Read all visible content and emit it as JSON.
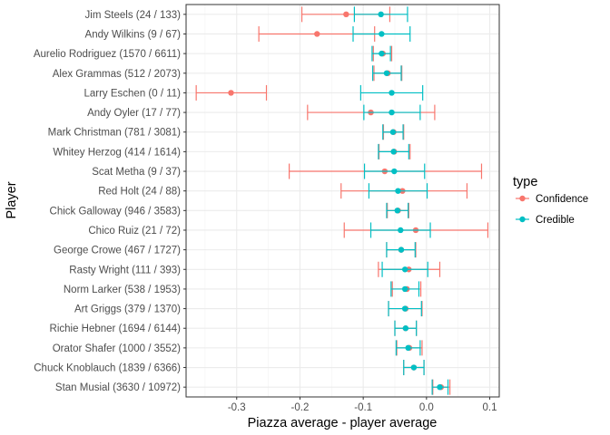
{
  "chart_data": {
    "type": "errorbar",
    "xlabel": "Piazza average - player average",
    "ylabel": "Player",
    "xlim": [
      -0.38,
      0.115
    ],
    "xticks": [
      -0.3,
      -0.2,
      -0.1,
      0.0,
      0.1
    ],
    "xtick_labels": [
      "-0.3",
      "-0.2",
      "-0.1",
      "0.0",
      "0.1"
    ],
    "grid": true,
    "legend": {
      "title": "type",
      "position": "right",
      "entries": [
        {
          "label": "Confidence",
          "color": "#F8766D"
        },
        {
          "label": "Credible",
          "color": "#00BFC4"
        }
      ]
    },
    "players": [
      "Jim Steels (24 / 133)",
      "Andy Wilkins (9 / 67)",
      "Aurelio Rodriguez (1570 / 6611)",
      "Alex Grammas (512 / 2073)",
      "Larry Eschen (0 / 11)",
      "Andy Oyler (17 / 77)",
      "Mark Christman (781 / 3081)",
      "Whitey Herzog (414 / 1614)",
      "Scat Metha (9 / 37)",
      "Red Holt (24 / 88)",
      "Chick Galloway (946 / 3583)",
      "Chico Ruiz (21 / 72)",
      "George Crowe (467 / 1727)",
      "Rasty Wright (111 / 393)",
      "Norm Larker (538 / 1953)",
      "Art Griggs (379 / 1370)",
      "Richie Hebner (1694 / 6144)",
      "Orator Shafer (1000 / 3552)",
      "Chuck Knoblauch (1839 / 6366)",
      "Stan Musial (3630 / 10972)"
    ],
    "series": [
      {
        "name": "Confidence",
        "color": "#F8766D",
        "estimate": [
          -0.127,
          -0.173,
          -0.069,
          -0.061,
          -0.309,
          -0.088,
          -0.052,
          -0.051,
          -0.066,
          -0.038,
          -0.045,
          -0.017,
          -0.04,
          -0.028,
          -0.031,
          -0.033,
          -0.033,
          -0.027,
          -0.02,
          0.023
        ],
        "lower": [
          -0.197,
          -0.265,
          -0.084,
          -0.083,
          -0.364,
          -0.188,
          -0.068,
          -0.075,
          -0.217,
          -0.135,
          -0.062,
          -0.13,
          -0.063,
          -0.076,
          -0.054,
          -0.06,
          -0.05,
          -0.047,
          -0.036,
          0.01
        ],
        "upper": [
          -0.058,
          -0.082,
          -0.055,
          -0.039,
          -0.253,
          0.013,
          -0.036,
          -0.026,
          0.087,
          0.064,
          -0.028,
          0.097,
          -0.017,
          0.021,
          -0.009,
          -0.007,
          -0.016,
          -0.007,
          -0.004,
          0.037
        ]
      },
      {
        "name": "Credible",
        "color": "#00BFC4",
        "estimate": [
          -0.072,
          -0.071,
          -0.071,
          -0.063,
          -0.055,
          -0.055,
          -0.053,
          -0.052,
          -0.051,
          -0.045,
          -0.046,
          -0.041,
          -0.04,
          -0.034,
          -0.034,
          -0.034,
          -0.033,
          -0.029,
          -0.02,
          0.021
        ],
        "lower": [
          -0.114,
          -0.116,
          -0.086,
          -0.085,
          -0.104,
          -0.099,
          -0.069,
          -0.076,
          -0.098,
          -0.091,
          -0.063,
          -0.088,
          -0.063,
          -0.07,
          -0.056,
          -0.06,
          -0.05,
          -0.048,
          -0.036,
          0.009
        ],
        "upper": [
          -0.03,
          -0.026,
          -0.057,
          -0.04,
          -0.006,
          -0.01,
          -0.037,
          -0.028,
          -0.003,
          0.001,
          -0.029,
          0.006,
          -0.018,
          0.002,
          -0.012,
          -0.008,
          -0.016,
          -0.01,
          -0.004,
          0.034
        ]
      }
    ]
  }
}
